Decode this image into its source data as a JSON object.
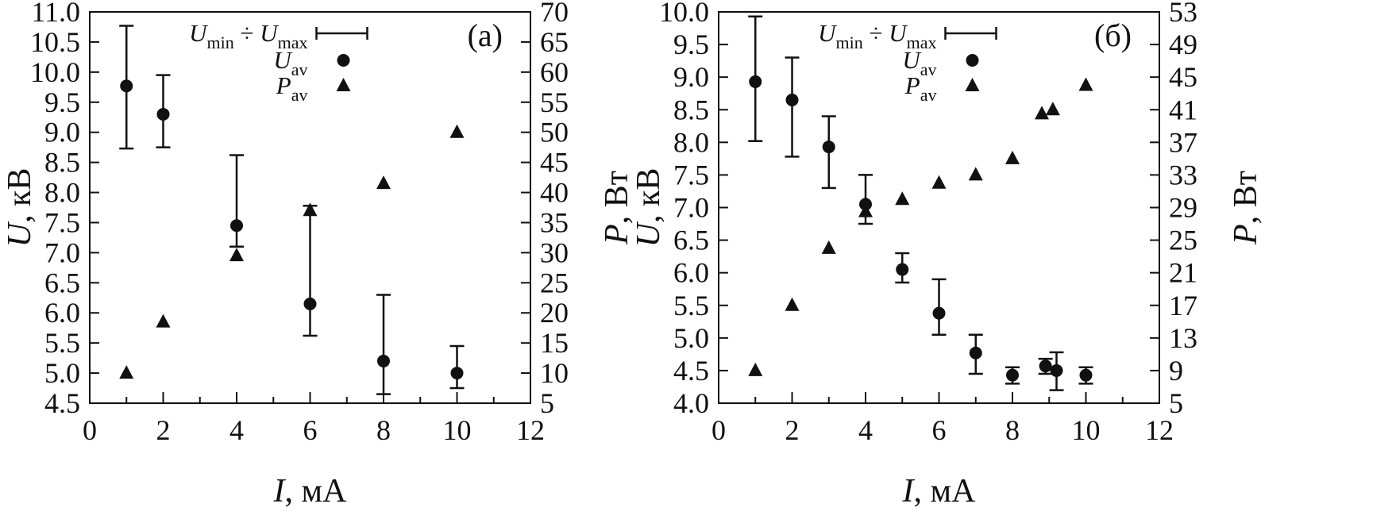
{
  "figure": {
    "description": "Two-panel scatter plot of voltage U and power P versus current I",
    "ink_color": "#111111",
    "background": "#ffffff"
  },
  "chart_data": [
    {
      "type": "scatter",
      "panel_label": "(а)",
      "x_axis": {
        "label_tokens": [
          {
            "v": "I"
          },
          ", мА"
        ],
        "min": 0,
        "max": 12,
        "tick_step": 2,
        "minor_tick_step": 1,
        "decimals": 0
      },
      "y_left_axis": {
        "label_tokens": [
          {
            "v": "U"
          },
          ", кВ"
        ],
        "min": 4.5,
        "max": 11.0,
        "tick_step": 0.5,
        "decimals": 1
      },
      "y_right_axis": {
        "label_tokens": [
          {
            "v": "P"
          },
          ", Вт"
        ],
        "min": 5,
        "max": 70,
        "tick_step": 5,
        "decimals": 0
      },
      "legend": [
        {
          "marker": "error-bar",
          "tokens": [
            {
              "v": "U",
              "s": "min"
            },
            " ÷ ",
            {
              "v": "U",
              "s": "max"
            }
          ]
        },
        {
          "marker": "circle",
          "tokens": [
            {
              "v": "U",
              "s": "av"
            }
          ]
        },
        {
          "marker": "triangle",
          "tokens": [
            {
              "v": "P",
              "s": "av"
            }
          ]
        }
      ],
      "series": [
        {
          "name": "U_av",
          "axis": "left",
          "marker": "circle",
          "points": [
            {
              "x": 1,
              "y": 9.77,
              "ymin": 8.73,
              "ymax": 10.77
            },
            {
              "x": 2,
              "y": 9.3,
              "ymin": 8.75,
              "ymax": 9.95
            },
            {
              "x": 4,
              "y": 7.45,
              "ymin": 7.1,
              "ymax": 8.62
            },
            {
              "x": 6,
              "y": 6.15,
              "ymin": 5.62,
              "ymax": 7.78
            },
            {
              "x": 8,
              "y": 5.2,
              "ymin": 4.65,
              "ymax": 6.3
            },
            {
              "x": 10,
              "y": 5.0,
              "ymin": 4.75,
              "ymax": 5.45
            }
          ]
        },
        {
          "name": "P_av",
          "axis": "right",
          "marker": "triangle",
          "points": [
            {
              "x": 1,
              "y": 10
            },
            {
              "x": 2,
              "y": 18.5
            },
            {
              "x": 4,
              "y": 29.5
            },
            {
              "x": 6,
              "y": 37
            },
            {
              "x": 8,
              "y": 41.5
            },
            {
              "x": 10,
              "y": 50
            }
          ]
        }
      ]
    },
    {
      "type": "scatter",
      "panel_label": "(б)",
      "x_axis": {
        "label_tokens": [
          {
            "v": "I"
          },
          ", мА"
        ],
        "min": 0,
        "max": 12,
        "tick_step": 2,
        "minor_tick_step": 1,
        "decimals": 0
      },
      "y_left_axis": {
        "label_tokens": [
          {
            "v": "U"
          },
          ", кВ"
        ],
        "min": 4.0,
        "max": 10.0,
        "tick_step": 0.5,
        "decimals": 1
      },
      "y_right_axis": {
        "label_tokens": [
          {
            "v": "P"
          },
          ", Вт"
        ],
        "min": 5,
        "max": 53,
        "tick_step": 4,
        "decimals": 0
      },
      "legend": [
        {
          "marker": "error-bar",
          "tokens": [
            {
              "v": "U",
              "s": "min"
            },
            " ÷ ",
            {
              "v": "U",
              "s": "max"
            }
          ]
        },
        {
          "marker": "circle",
          "tokens": [
            {
              "v": "U",
              "s": "av"
            }
          ]
        },
        {
          "marker": "triangle",
          "tokens": [
            {
              "v": "P",
              "s": "av"
            }
          ]
        }
      ],
      "series": [
        {
          "name": "U_av",
          "axis": "left",
          "marker": "circle",
          "points": [
            {
              "x": 1,
              "y": 8.93,
              "ymin": 8.02,
              "ymax": 9.93
            },
            {
              "x": 2,
              "y": 8.65,
              "ymin": 7.78,
              "ymax": 9.3
            },
            {
              "x": 3,
              "y": 7.93,
              "ymin": 7.3,
              "ymax": 8.4
            },
            {
              "x": 4,
              "y": 7.05,
              "ymin": 6.75,
              "ymax": 7.5
            },
            {
              "x": 5,
              "y": 6.05,
              "ymin": 5.85,
              "ymax": 6.3
            },
            {
              "x": 6,
              "y": 5.38,
              "ymin": 5.05,
              "ymax": 5.9
            },
            {
              "x": 7,
              "y": 4.77,
              "ymin": 4.45,
              "ymax": 5.05
            },
            {
              "x": 8,
              "y": 4.43,
              "ymin": 4.3,
              "ymax": 4.55
            },
            {
              "x": 8.9,
              "y": 4.57,
              "ymin": 4.45,
              "ymax": 4.68
            },
            {
              "x": 9.2,
              "y": 4.5,
              "ymin": 4.2,
              "ymax": 4.78
            },
            {
              "x": 10,
              "y": 4.43,
              "ymin": 4.3,
              "ymax": 4.55
            }
          ]
        },
        {
          "name": "P_av",
          "axis": "right",
          "marker": "triangle",
          "points": [
            {
              "x": 1,
              "y": 9
            },
            {
              "x": 2,
              "y": 17
            },
            {
              "x": 3,
              "y": 24
            },
            {
              "x": 4,
              "y": 28.5
            },
            {
              "x": 5,
              "y": 30
            },
            {
              "x": 6,
              "y": 32
            },
            {
              "x": 7,
              "y": 33
            },
            {
              "x": 8,
              "y": 35
            },
            {
              "x": 8.8,
              "y": 40.5
            },
            {
              "x": 9.1,
              "y": 41
            },
            {
              "x": 10,
              "y": 44
            }
          ]
        }
      ]
    }
  ]
}
